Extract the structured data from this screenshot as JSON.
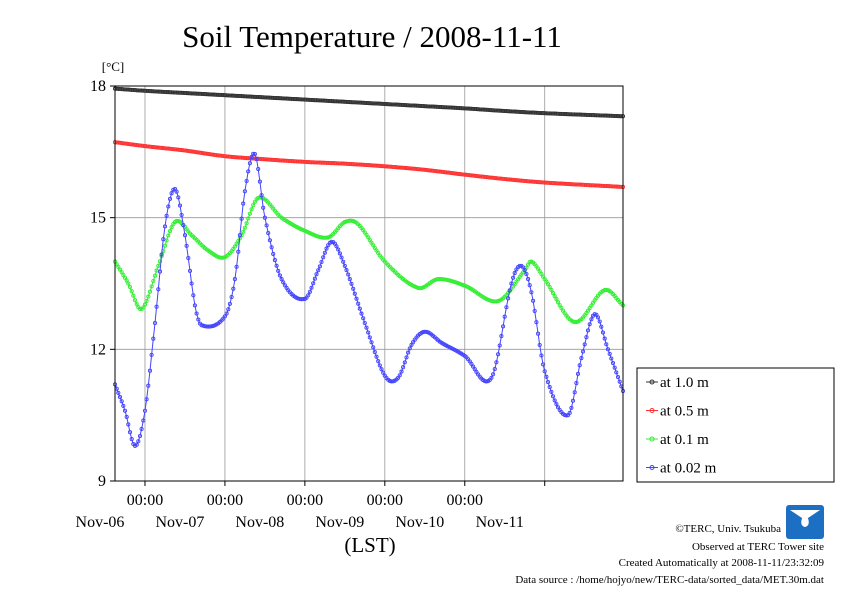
{
  "chart_data": {
    "type": "line",
    "title": "Soil Temperature / 2008-11-11",
    "ylabel": "[°C]",
    "xlabel": "(LST)",
    "ylim": [
      9,
      18
    ],
    "yticks": [
      9,
      12,
      15,
      18
    ],
    "xlim": [
      "2008-11-05T15:00",
      "2008-11-11T23:30"
    ],
    "xticks": [
      {
        "time": "2008-11-06T00:00",
        "label": "00:00",
        "date_label": "Nov-06"
      },
      {
        "time": "2008-11-07T00:00",
        "label": "00:00",
        "date_label": "Nov-07"
      },
      {
        "time": "2008-11-08T00:00",
        "label": "00:00",
        "date_label": "Nov-08"
      },
      {
        "time": "2008-11-09T00:00",
        "label": "00:00",
        "date_label": "Nov-09"
      },
      {
        "time": "2008-11-10T00:00",
        "label": "00:00",
        "date_label": "Nov-10"
      },
      {
        "time": "2008-11-11T00:00",
        "label": "",
        "date_label": "Nov-11"
      }
    ],
    "grid": true,
    "legend_position": "right",
    "series": [
      {
        "name": "at 1.0 m",
        "color": "#333333",
        "sampling": "30min",
        "points": [
          [
            "2008-11-05T15:00",
            17.94
          ],
          [
            "2008-11-06T00:00",
            17.89
          ],
          [
            "2008-11-06T12:00",
            17.84
          ],
          [
            "2008-11-07T00:00",
            17.79
          ],
          [
            "2008-11-07T12:00",
            17.74
          ],
          [
            "2008-11-08T00:00",
            17.69
          ],
          [
            "2008-11-08T12:00",
            17.64
          ],
          [
            "2008-11-09T00:00",
            17.59
          ],
          [
            "2008-11-09T12:00",
            17.54
          ],
          [
            "2008-11-10T00:00",
            17.49
          ],
          [
            "2008-11-10T12:00",
            17.43
          ],
          [
            "2008-11-11T00:00",
            17.38
          ],
          [
            "2008-11-11T23:30",
            17.31
          ]
        ]
      },
      {
        "name": "at 0.5 m",
        "color": "#ff3333",
        "sampling": "30min",
        "points": [
          [
            "2008-11-05T15:00",
            16.72
          ],
          [
            "2008-11-06T00:00",
            16.63
          ],
          [
            "2008-11-06T12:00",
            16.53
          ],
          [
            "2008-11-07T00:00",
            16.4
          ],
          [
            "2008-11-07T12:00",
            16.33
          ],
          [
            "2008-11-08T00:00",
            16.27
          ],
          [
            "2008-11-08T12:00",
            16.23
          ],
          [
            "2008-11-09T00:00",
            16.17
          ],
          [
            "2008-11-09T12:00",
            16.09
          ],
          [
            "2008-11-10T00:00",
            15.98
          ],
          [
            "2008-11-10T12:00",
            15.88
          ],
          [
            "2008-11-11T00:00",
            15.8
          ],
          [
            "2008-11-11T23:30",
            15.7
          ]
        ]
      },
      {
        "name": "at 0.1 m",
        "color": "#33ee33",
        "sampling": "30min",
        "points": [
          [
            "2008-11-05T15:00",
            14.0
          ],
          [
            "2008-11-05T19:00",
            13.5
          ],
          [
            "2008-11-05T23:00",
            12.92
          ],
          [
            "2008-11-06T04:00",
            13.9
          ],
          [
            "2008-11-06T09:00",
            14.9
          ],
          [
            "2008-11-06T14:00",
            14.6
          ],
          [
            "2008-11-06T19:00",
            14.25
          ],
          [
            "2008-11-07T00:00",
            14.1
          ],
          [
            "2008-11-07T05:00",
            14.6
          ],
          [
            "2008-11-07T10:00",
            15.45
          ],
          [
            "2008-11-07T17:00",
            15.0
          ],
          [
            "2008-11-08T00:00",
            14.7
          ],
          [
            "2008-11-08T07:00",
            14.55
          ],
          [
            "2008-11-08T12:00",
            14.9
          ],
          [
            "2008-11-08T16:00",
            14.85
          ],
          [
            "2008-11-09T00:00",
            14.0
          ],
          [
            "2008-11-09T10:00",
            13.4
          ],
          [
            "2008-11-09T16:00",
            13.6
          ],
          [
            "2008-11-10T00:00",
            13.45
          ],
          [
            "2008-11-10T10:00",
            13.1
          ],
          [
            "2008-11-10T18:00",
            13.8
          ],
          [
            "2008-11-10T20:00",
            14.0
          ],
          [
            "2008-11-11T00:00",
            13.6
          ],
          [
            "2008-11-11T09:00",
            12.62
          ],
          [
            "2008-11-11T18:00",
            13.35
          ],
          [
            "2008-11-11T23:30",
            13.0
          ]
        ]
      },
      {
        "name": "at 0.02 m",
        "color": "#4444ff",
        "sampling": "30min",
        "points": [
          [
            "2008-11-05T15:00",
            11.2
          ],
          [
            "2008-11-05T18:00",
            10.6
          ],
          [
            "2008-11-05T21:00",
            9.8
          ],
          [
            "2008-11-06T00:00",
            10.6
          ],
          [
            "2008-11-06T03:00",
            12.6
          ],
          [
            "2008-11-06T06:00",
            14.8
          ],
          [
            "2008-11-06T09:00",
            15.65
          ],
          [
            "2008-11-06T12:00",
            14.6
          ],
          [
            "2008-11-06T15:00",
            13.0
          ],
          [
            "2008-11-06T17:00",
            12.55
          ],
          [
            "2008-11-07T00:00",
            12.75
          ],
          [
            "2008-11-07T03:00",
            13.6
          ],
          [
            "2008-11-07T06:00",
            15.6
          ],
          [
            "2008-11-07T09:00",
            16.45
          ],
          [
            "2008-11-07T12:00",
            15.0
          ],
          [
            "2008-11-07T17:00",
            13.6
          ],
          [
            "2008-11-08T00:00",
            13.15
          ],
          [
            "2008-11-08T04:00",
            13.8
          ],
          [
            "2008-11-08T08:00",
            14.45
          ],
          [
            "2008-11-08T12:00",
            13.9
          ],
          [
            "2008-11-08T18:00",
            12.6
          ],
          [
            "2008-11-09T00:00",
            11.4
          ],
          [
            "2008-11-09T04:00",
            11.35
          ],
          [
            "2008-11-09T08:00",
            12.1
          ],
          [
            "2008-11-09T12:00",
            12.4
          ],
          [
            "2008-11-09T17:00",
            12.15
          ],
          [
            "2008-11-10T00:00",
            11.85
          ],
          [
            "2008-11-10T08:00",
            11.35
          ],
          [
            "2008-11-10T14:00",
            13.5
          ],
          [
            "2008-11-10T17:00",
            13.9
          ],
          [
            "2008-11-10T20:00",
            13.3
          ],
          [
            "2008-11-11T00:00",
            11.5
          ],
          [
            "2008-11-11T07:00",
            10.5
          ],
          [
            "2008-11-11T11:00",
            11.8
          ],
          [
            "2008-11-11T15:00",
            12.8
          ],
          [
            "2008-11-11T19:00",
            12.0
          ],
          [
            "2008-11-11T23:30",
            11.05
          ]
        ]
      }
    ]
  },
  "footer": {
    "copyright": "©TERC, Univ. Tsukuba",
    "observed": "Observed at TERC Tower site",
    "created": "Created Automatically at 2008-11-11/23:32:09",
    "source": "Data source : /home/hojyo/new/TERC-data/sorted_data/MET.30m.dat",
    "logo_text": "TERC"
  }
}
